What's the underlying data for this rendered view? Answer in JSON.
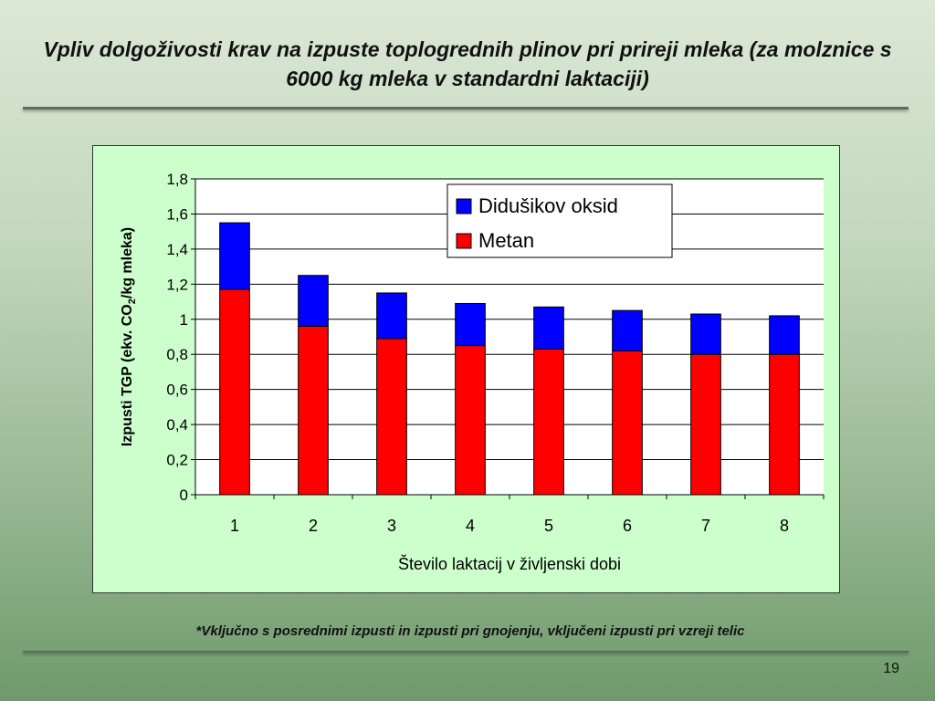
{
  "slide": {
    "title": "Vpliv dolgoživosti krav na izpuste toplogrednih plinov pri prireji mleka (za molznice s 6000 kg mleka v standardni laktaciji)",
    "footnote": "*Vključno s posrednimi izpusti in izpusti pri gnojenju, vključeni izpusti pri vzreji telic",
    "page_number": "19"
  },
  "chart_data": {
    "type": "bar",
    "stacked": true,
    "categories": [
      "1",
      "2",
      "3",
      "4",
      "5",
      "6",
      "7",
      "8"
    ],
    "series": [
      {
        "name": "Metan",
        "color": "#ff0000",
        "values": [
          1.17,
          0.96,
          0.89,
          0.85,
          0.83,
          0.82,
          0.8,
          0.8
        ]
      },
      {
        "name": "Didušikov oksid",
        "color": "#0000ff",
        "values": [
          0.38,
          0.29,
          0.26,
          0.24,
          0.24,
          0.23,
          0.23,
          0.22
        ]
      }
    ],
    "xlabel": "Število laktacij v življenski dobi",
    "ylabel_main": "Izpusti TGP (ekv. CO",
    "ylabel_sub": "2",
    "ylabel_tail": "/kg mleka)",
    "ylim": [
      0,
      1.8
    ],
    "yticks": [
      0,
      0.2,
      0.4,
      0.6,
      0.8,
      1,
      1.2,
      1.4,
      1.6,
      1.8
    ],
    "ytick_labels": [
      "0",
      "0,2",
      "0,4",
      "0,6",
      "0,8",
      "1",
      "1,2",
      "1,4",
      "1,6",
      "1,8"
    ],
    "grid": true,
    "legend_position": "top-right",
    "legend_order": [
      "Didušikov oksid",
      "Metan"
    ],
    "background": "#ccffcc"
  }
}
